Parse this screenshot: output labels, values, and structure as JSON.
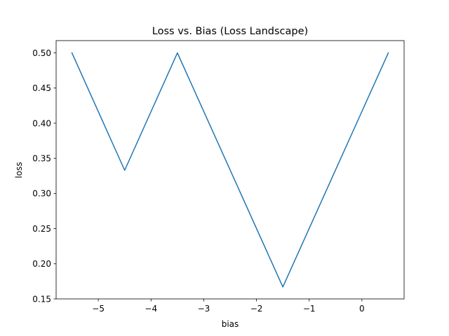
{
  "chart_data": {
    "type": "line",
    "title": "Loss vs. Bias (Loss Landscape)",
    "xlabel": "bias",
    "ylabel": "loss",
    "xlim": [
      -5.8,
      0.8
    ],
    "ylim": [
      0.15,
      0.5175
    ],
    "x_ticks": [
      -5,
      -4,
      -3,
      -2,
      -1,
      0
    ],
    "x_tick_labels": [
      "−5",
      "−4",
      "−3",
      "−2",
      "−1",
      "0"
    ],
    "y_ticks": [
      0.15,
      0.2,
      0.25,
      0.3,
      0.35,
      0.4,
      0.45,
      0.5
    ],
    "y_tick_labels": [
      "0.15",
      "0.20",
      "0.25",
      "0.30",
      "0.35",
      "0.40",
      "0.45",
      "0.50"
    ],
    "grid": false,
    "legend": "none",
    "series": [
      {
        "color": "#1f77b4",
        "x": [
          -5.5,
          -4.5,
          -3.5,
          -1.5,
          0.5
        ],
        "y": [
          0.5,
          0.333,
          0.5,
          0.167,
          0.5
        ]
      }
    ]
  }
}
